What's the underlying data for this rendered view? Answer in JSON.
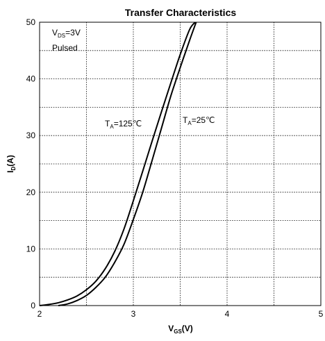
{
  "chart_data": {
    "type": "line",
    "title": "Transfer Characteristics",
    "xlabel": {
      "main": "V",
      "sub": "GS",
      "unit": "(V)"
    },
    "ylabel": {
      "main": "I",
      "sub": "D",
      "unit": "(A)"
    },
    "xlim": [
      2,
      5
    ],
    "ylim": [
      0,
      50
    ],
    "x_ticks": [
      "2",
      "3",
      "4",
      "5"
    ],
    "y_ticks": [
      "0",
      "10",
      "20",
      "30",
      "40",
      "50"
    ],
    "grid": true,
    "annotations": {
      "conditions_line1": {
        "main": "V",
        "sub": "DS",
        "rest": "=3V"
      },
      "conditions_line2": "Pulsed",
      "label_125": {
        "main": "T",
        "sub": "A",
        "rest": "=125℃"
      },
      "label_25": {
        "main": "T",
        "sub": "A",
        "rest": "=25℃"
      }
    },
    "series": [
      {
        "x": [
          2.0,
          2.1,
          2.2,
          2.3,
          2.4,
          2.5,
          2.6,
          2.7,
          2.8,
          2.9,
          3.0,
          3.1,
          3.2,
          3.3,
          3.4,
          3.5,
          3.6,
          3.66
        ],
        "values": [
          0.0,
          0.2,
          0.5,
          1.0,
          1.7,
          2.8,
          4.3,
          6.5,
          9.5,
          13.5,
          18.5,
          23.7,
          29.0,
          34.2,
          39.3,
          44.3,
          48.7,
          50.0
        ]
      },
      {
        "x": [
          2.2,
          2.3,
          2.4,
          2.5,
          2.6,
          2.7,
          2.8,
          2.9,
          3.0,
          3.1,
          3.2,
          3.3,
          3.4,
          3.5,
          3.6,
          3.67
        ],
        "values": [
          0.0,
          0.3,
          0.9,
          1.8,
          3.2,
          5.0,
          7.6,
          10.8,
          15.2,
          20.0,
          25.6,
          31.3,
          37.0,
          42.0,
          46.8,
          50.0
        ]
      }
    ]
  }
}
